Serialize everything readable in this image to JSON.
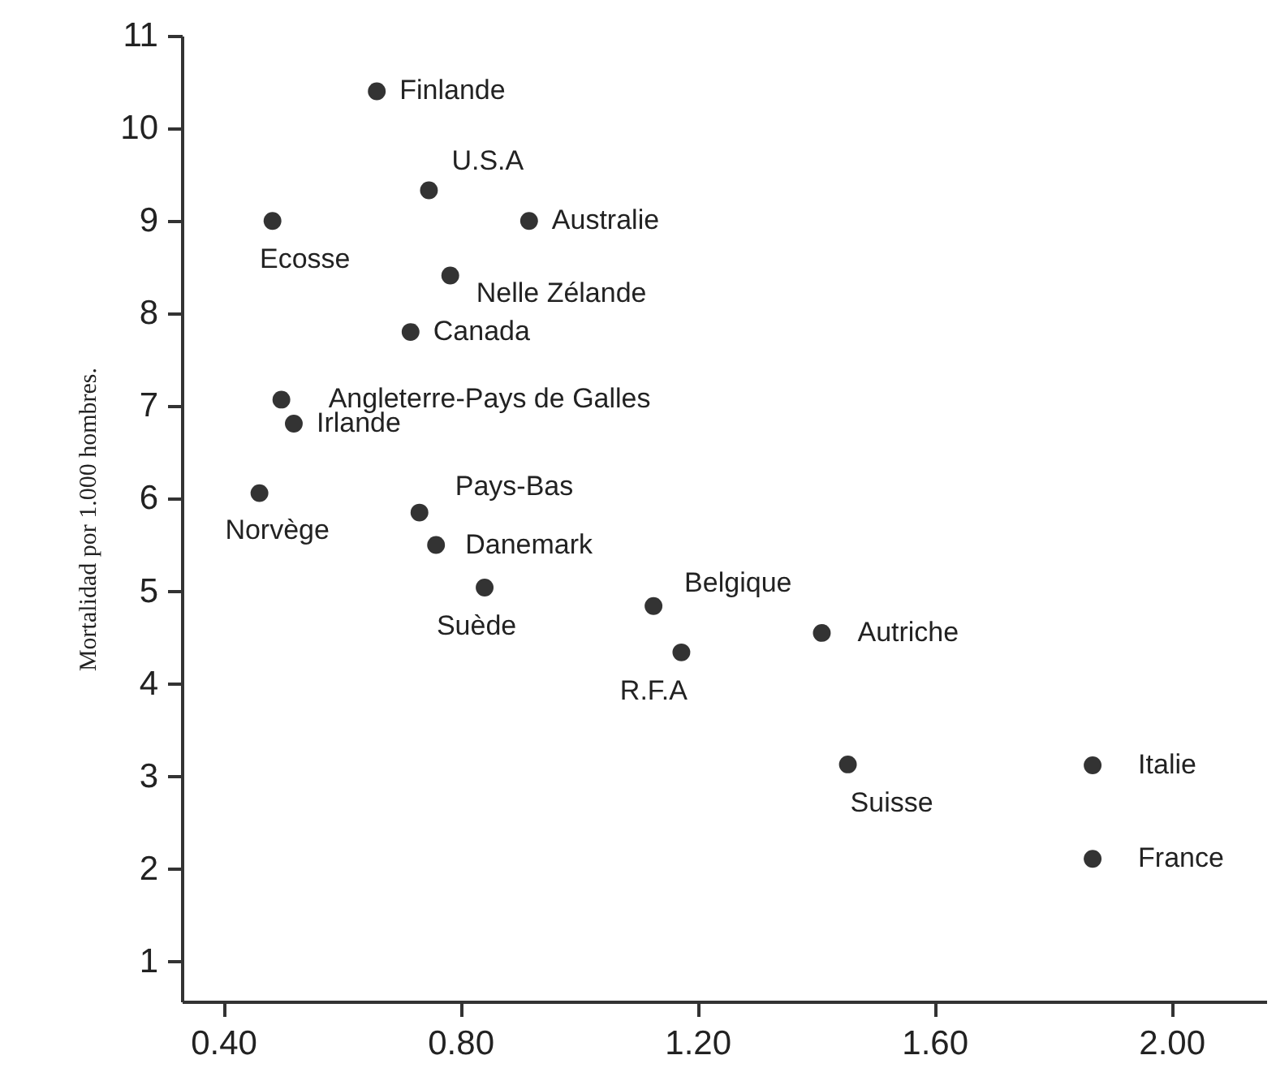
{
  "chart_data": {
    "type": "scatter",
    "ylabel": "Mortalidad por 1.000 hombres.",
    "xlim": [
      0.33,
      2.16
    ],
    "ylim": [
      0.57,
      11
    ],
    "xticks": [
      {
        "value": 0.4,
        "label": "0.40"
      },
      {
        "value": 0.8,
        "label": "0.80"
      },
      {
        "value": 1.2,
        "label": "1.20"
      },
      {
        "value": 1.6,
        "label": "1.60"
      },
      {
        "value": 2.0,
        "label": "2.00"
      }
    ],
    "yticks": [
      1,
      2,
      3,
      4,
      5,
      6,
      7,
      8,
      9,
      10,
      11
    ],
    "grid": false,
    "marker": "circle",
    "series": [
      {
        "color": "#333333",
        "x": [
          0.659,
          0.747,
          0.916,
          0.483,
          0.783,
          0.716,
          0.498,
          0.519,
          0.461,
          0.731,
          0.759,
          0.841,
          1.126,
          1.173,
          1.41,
          1.454,
          1.867,
          1.867
        ],
        "values": [
          10.4,
          9.33,
          9.0,
          9.0,
          8.41,
          7.8,
          7.07,
          6.81,
          6.06,
          5.85,
          5.5,
          5.04,
          4.84,
          4.34,
          4.55,
          3.13,
          3.12,
          2.11
        ]
      }
    ],
    "annotations": [
      {
        "text": "Finlande",
        "x": 0.659,
        "y": 10.4
      },
      {
        "text": "U.S.A",
        "x": 0.747,
        "y": 9.33
      },
      {
        "text": "Australie",
        "x": 0.916,
        "y": 9.0
      },
      {
        "text": "Ecosse",
        "x": 0.483,
        "y": 9.0
      },
      {
        "text": "Nelle Zélande",
        "x": 0.783,
        "y": 8.41
      },
      {
        "text": "Canada",
        "x": 0.716,
        "y": 7.8
      },
      {
        "text": "Angleterre-Pays de Galles",
        "x": 0.498,
        "y": 7.07
      },
      {
        "text": "Irlande",
        "x": 0.519,
        "y": 6.81
      },
      {
        "text": "Norvège",
        "x": 0.461,
        "y": 6.06
      },
      {
        "text": "Pays-Bas",
        "x": 0.731,
        "y": 5.85
      },
      {
        "text": "Danemark",
        "x": 0.759,
        "y": 5.5
      },
      {
        "text": "Suède",
        "x": 0.841,
        "y": 5.04
      },
      {
        "text": "Belgique",
        "x": 1.126,
        "y": 4.84
      },
      {
        "text": "R.F.A",
        "x": 1.173,
        "y": 4.34
      },
      {
        "text": "Autriche",
        "x": 1.41,
        "y": 4.55
      },
      {
        "text": "Suisse",
        "x": 1.454,
        "y": 3.13
      },
      {
        "text": "Italie",
        "x": 1.867,
        "y": 3.12
      },
      {
        "text": "France",
        "x": 1.867,
        "y": 2.11
      }
    ]
  }
}
